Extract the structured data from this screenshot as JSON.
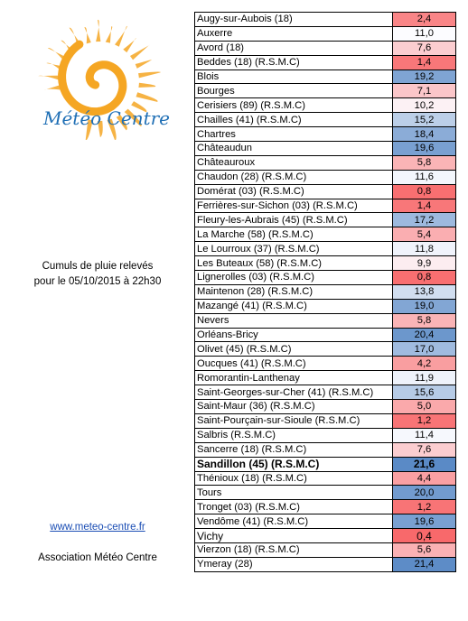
{
  "logo": {
    "text": "Météo Centre",
    "sun_color": "#f5a623",
    "text_color": "#1f6fb5"
  },
  "caption": {
    "line1": "Cumuls de pluie relevés",
    "line2": "pour le 05/10/2015 à 22h30"
  },
  "footer": {
    "site_link": "www.meteo-centre.fr",
    "association": "Association Météo Centre"
  },
  "scale_colors": {
    "low": "#f8696b",
    "mid": "#fcfcff",
    "high": "#5a8ac6"
  },
  "stations": [
    {
      "name": "Augy-sur-Aubois (18)",
      "value": "2,4"
    },
    {
      "name": "Auxerre",
      "value": "11,0"
    },
    {
      "name": "Avord (18)",
      "value": "7,6"
    },
    {
      "name": "Beddes (18) (R.S.M.C)",
      "value": "1,4"
    },
    {
      "name": "Blois",
      "value": "19,2"
    },
    {
      "name": "Bourges",
      "value": "7,1"
    },
    {
      "name": "Cerisiers (89) (R.S.M.C)",
      "value": "10,2"
    },
    {
      "name": "Chailles (41) (R.S.M.C)",
      "value": "15,2"
    },
    {
      "name": "Chartres",
      "value": "18,4"
    },
    {
      "name": "Châteaudun",
      "value": "19,6"
    },
    {
      "name": "Châteauroux",
      "value": "5,8"
    },
    {
      "name": "Chaudon (28) (R.S.M.C)",
      "value": "11,6"
    },
    {
      "name": "Domérat (03) (R.S.M.C)",
      "value": "0,8"
    },
    {
      "name": "Ferrières-sur-Sichon (03) (R.S.M.C)",
      "value": "1,4"
    },
    {
      "name": "Fleury-les-Aubrais (45) (R.S.M.C)",
      "value": "17,2"
    },
    {
      "name": "La Marche (58) (R.S.M.C)",
      "value": "5,4"
    },
    {
      "name": "Le Lourroux (37) (R.S.M.C)",
      "value": "11,8"
    },
    {
      "name": "Les Buteaux (58) (R.S.M.C)",
      "value": "9,9"
    },
    {
      "name": "Lignerolles (03) (R.S.M.C)",
      "value": "0,8"
    },
    {
      "name": "Maintenon (28) (R.S.M.C)",
      "value": "13,8"
    },
    {
      "name": "Mazangé (41) (R.S.M.C)",
      "value": "19,0"
    },
    {
      "name": "Nevers",
      "value": "5,8"
    },
    {
      "name": "Orléans-Bricy",
      "value": "20,4"
    },
    {
      "name": "Olivet (45) (R.S.M.C)",
      "value": "17,0"
    },
    {
      "name": "Oucques (41) (R.S.M.C)",
      "value": "4,2"
    },
    {
      "name": "Romorantin-Lanthenay",
      "value": "11,9"
    },
    {
      "name": "Saint-Georges-sur-Cher (41) (R.S.M.C)",
      "value": "15,6"
    },
    {
      "name": "Saint-Maur (36) (R.S.M.C)",
      "value": "5,0"
    },
    {
      "name": "Saint-Pourçain-sur-Sioule (R.S.M.C)",
      "value": "1,2"
    },
    {
      "name": "Salbris (R.S.M.C)",
      "value": "11,4"
    },
    {
      "name": "Sancerre (18) (R.S.M.C)",
      "value": "7,6"
    },
    {
      "name": "Sandillon (45) (R.S.M.C)",
      "value": "21,6",
      "highlight": true
    },
    {
      "name": "Thénioux (18) (R.S.M.C)",
      "value": "4,4"
    },
    {
      "name": "Tours",
      "value": "20,0"
    },
    {
      "name": "Tronget (03) (R.S.M.C)",
      "value": "1,2"
    },
    {
      "name": "Vendôme (41) (R.S.M.C)",
      "value": "19,6"
    },
    {
      "name": "Vichy",
      "value": "0,4",
      "large": true
    },
    {
      "name": "Vierzon (18) (R.S.M.C)",
      "value": "5,6"
    },
    {
      "name": "Ymeray (28)",
      "value": "21,4"
    }
  ]
}
